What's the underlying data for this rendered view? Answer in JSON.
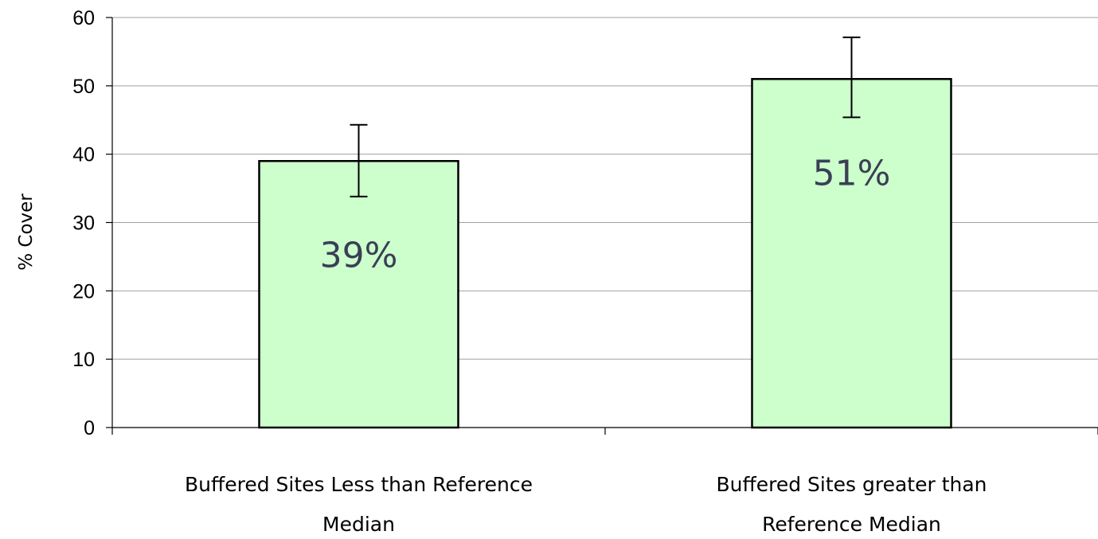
{
  "chart_data": {
    "type": "bar",
    "title": "",
    "xlabel": "",
    "ylabel": "% Cover",
    "ylim": [
      0,
      60
    ],
    "yticks": [
      0,
      10,
      20,
      30,
      40,
      50,
      60
    ],
    "grid": true,
    "legend": "none",
    "categories": [
      [
        "Buffered Sites Less than Reference",
        "Median"
      ],
      [
        "Buffered Sites greater than",
        "Reference Median"
      ]
    ],
    "values": [
      39,
      51
    ],
    "error_bars": [
      {
        "low": 33.8,
        "high": 44.3
      },
      {
        "low": 45.4,
        "high": 57.1
      }
    ],
    "data_labels": [
      "39%",
      "51%"
    ],
    "colors": {
      "bar_fill": "#ccffcc",
      "bar_stroke": "#000000",
      "grid": "#a0a0a0",
      "data_label": "#3a3f55"
    }
  }
}
